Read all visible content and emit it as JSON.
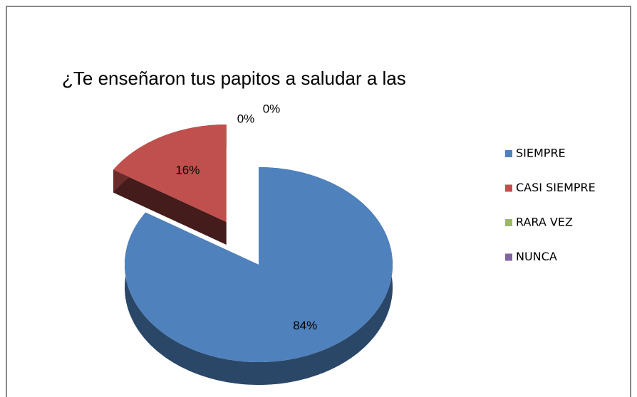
{
  "chart_data": {
    "type": "pie",
    "title": "¿Te enseñaron tus papitos a saludar a las",
    "categories": [
      "SIEMPRE",
      "CASI SIEMPRE",
      "RARA VEZ",
      "NUNCA"
    ],
    "values": [
      84,
      16,
      0,
      0
    ],
    "value_labels": [
      "84%",
      "16%",
      "0%",
      "0%"
    ],
    "colors": [
      "#4f81bd",
      "#c0504d",
      "#9bbb59",
      "#8064a2"
    ],
    "legend": "right"
  }
}
